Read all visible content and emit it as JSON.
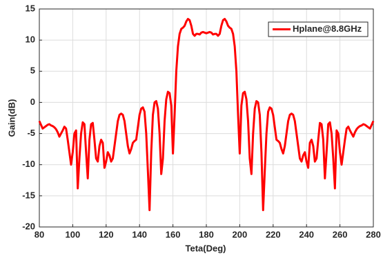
{
  "chart_data": {
    "type": "line",
    "x_label": "Teta(Deg)",
    "y_label": "Gain(dB)",
    "x": [
      80,
      81,
      82,
      83,
      84,
      85,
      86,
      87,
      88,
      89,
      90,
      91,
      92,
      93,
      94,
      95,
      96,
      97,
      98,
      99,
      100,
      101,
      102,
      103,
      104,
      105,
      106,
      107,
      108,
      109,
      110,
      111,
      112,
      113,
      114,
      115,
      116,
      117,
      118,
      119,
      120,
      121,
      122,
      123,
      124,
      125,
      126,
      127,
      128,
      129,
      130,
      131,
      132,
      133,
      134,
      135,
      136,
      137,
      138,
      139,
      140,
      141,
      142,
      143,
      144,
      145,
      146,
      147,
      148,
      149,
      150,
      151,
      152,
      153,
      154,
      155,
      156,
      157,
      158,
      159,
      160,
      161,
      162,
      163,
      164,
      165,
      166,
      167,
      168,
      169,
      170,
      171,
      172,
      173,
      174,
      175,
      176,
      177,
      178,
      179,
      180,
      181,
      182,
      183,
      184,
      185,
      186,
      187,
      188,
      189,
      190,
      191,
      192,
      193,
      194,
      195,
      196,
      197,
      198,
      199,
      200,
      201,
      202,
      203,
      204,
      205,
      206,
      207,
      208,
      209,
      210,
      211,
      212,
      213,
      214,
      215,
      216,
      217,
      218,
      219,
      220,
      221,
      222,
      223,
      224,
      225,
      226,
      227,
      228,
      229,
      230,
      231,
      232,
      233,
      234,
      235,
      236,
      237,
      238,
      239,
      240,
      241,
      242,
      243,
      244,
      245,
      246,
      247,
      248,
      249,
      250,
      251,
      252,
      253,
      254,
      255,
      256,
      257,
      258,
      259,
      260,
      261,
      262,
      263,
      264,
      265,
      266,
      267,
      268,
      269,
      270,
      271,
      272,
      273,
      274,
      275,
      276,
      277,
      278,
      279,
      280
    ],
    "series": [
      {
        "name": "Hplane@8.8GHz",
        "color": "#ff0000",
        "values": [
          -3,
          -3.6,
          -4.2,
          -4,
          -3.8,
          -3.6,
          -3.5,
          -3.7,
          -3.8,
          -4,
          -4.3,
          -4.8,
          -5.5,
          -5,
          -4.5,
          -3.9,
          -4.2,
          -6,
          -8,
          -10,
          -8,
          -5,
          -4.5,
          -13.8,
          -9,
          -5,
          -3.2,
          -3.5,
          -8,
          -12.2,
          -6,
          -3.5,
          -3.3,
          -6,
          -9,
          -9.5,
          -7,
          -6,
          -6.5,
          -10.5,
          -9.5,
          -8,
          -8.5,
          -9.5,
          -9,
          -7,
          -5,
          -3,
          -2,
          -1.8,
          -2,
          -3,
          -5,
          -7,
          -8.2,
          -7.5,
          -6.5,
          -6.2,
          -6,
          -4,
          -2,
          -1,
          -0.8,
          -1.5,
          -5,
          -11,
          -17.3,
          -8,
          -2,
          0,
          0.2,
          -1,
          -5,
          -11.5,
          -9,
          -3,
          0.5,
          1.7,
          1.5,
          -0.5,
          -8.2,
          -2,
          5,
          9,
          11,
          11.8,
          12,
          12.3,
          13,
          13.4,
          13.2,
          12.3,
          11,
          10.7,
          11,
          11,
          10.9,
          11.2,
          11.3,
          11.2,
          11.1,
          11.2,
          11.3,
          11.2,
          10.9,
          11,
          11,
          10.7,
          11,
          12.3,
          13.2,
          13.4,
          13,
          12.3,
          12,
          11.8,
          11,
          9,
          5,
          -2,
          -8.2,
          -0.5,
          1.5,
          1.7,
          0.5,
          -3,
          -9,
          -11.5,
          -5,
          -1,
          0.2,
          0,
          -2,
          -8,
          -17.3,
          -11,
          -5,
          -1.5,
          -0.8,
          -1,
          -2,
          -4,
          -6,
          -6.2,
          -6.5,
          -7.5,
          -8.2,
          -7,
          -5,
          -3,
          -2,
          -1.8,
          -2,
          -3,
          -5,
          -7,
          -9,
          -9.5,
          -8.5,
          -8,
          -9.5,
          -10.5,
          -6.5,
          -6,
          -7,
          -9.5,
          -9,
          -6,
          -3.3,
          -3.5,
          -6,
          -12.2,
          -8,
          -3.5,
          -3.2,
          -5,
          -9,
          -13.8,
          -4.5,
          -5,
          -8,
          -10,
          -8,
          -6,
          -4.2,
          -3.9,
          -4.5,
          -5,
          -5.5,
          -4.8,
          -4.3,
          -4,
          -3.8,
          -3.7,
          -3.5,
          -3.6,
          -3.8,
          -4,
          -4.2,
          -3.6,
          -3
        ]
      }
    ],
    "xlim": [
      80,
      280
    ],
    "xticks": [
      80,
      100,
      120,
      140,
      160,
      180,
      200,
      220,
      240,
      260,
      280
    ],
    "ylim": [
      -20,
      15
    ],
    "yticks": [
      -20,
      -15,
      -10,
      -5,
      0,
      5,
      10,
      15
    ],
    "grid": true,
    "legend": "upper-right"
  }
}
